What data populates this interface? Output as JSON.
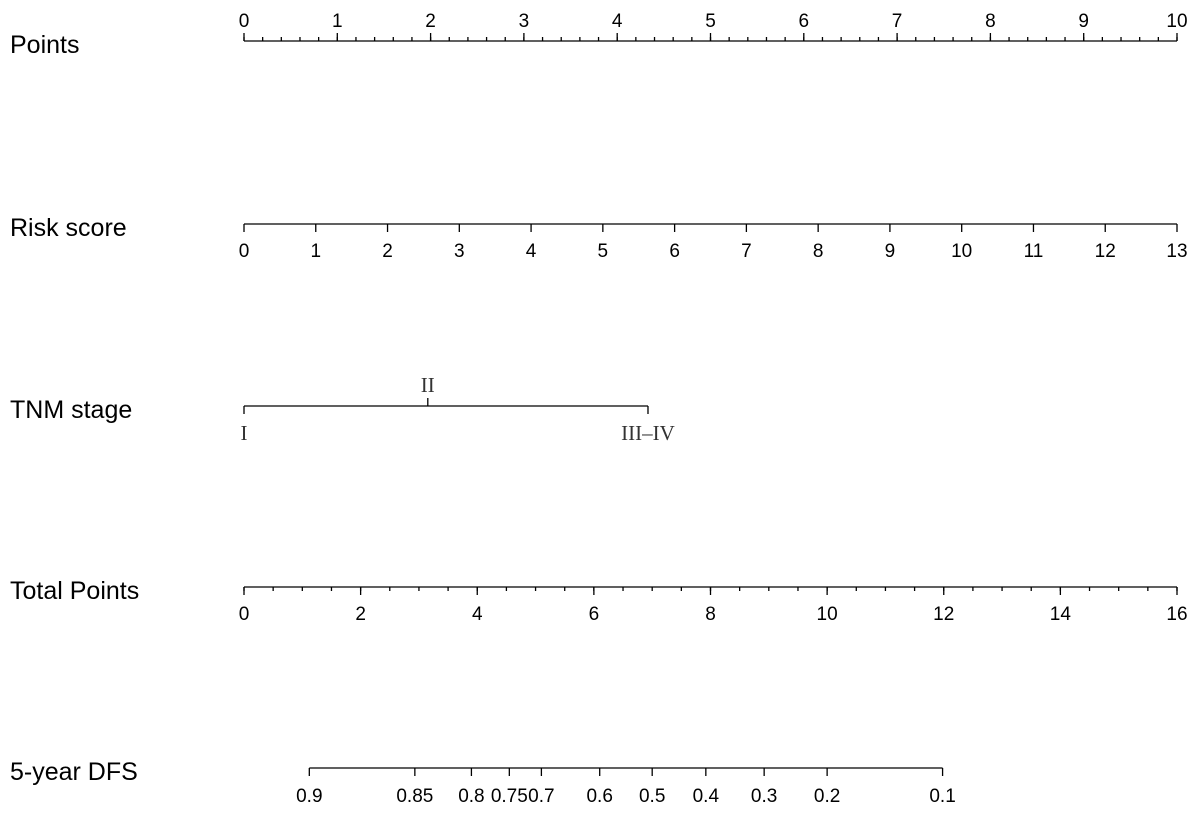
{
  "chart_data": {
    "type": "nomogram",
    "rows": [
      {
        "key": "points",
        "label": "Points",
        "range": [
          0,
          10
        ],
        "tick_side": "above",
        "major_ticks": [
          "0",
          "1",
          "2",
          "3",
          "4",
          "5",
          "6",
          "7",
          "8",
          "9",
          "10"
        ],
        "minor_step": 0.2
      },
      {
        "key": "risk_score",
        "label": "Risk  score",
        "range": [
          0,
          13
        ],
        "points_range": [
          0,
          10
        ],
        "tick_side": "below",
        "major_ticks": [
          "0",
          "1",
          "2",
          "3",
          "4",
          "5",
          "6",
          "7",
          "8",
          "9",
          "10",
          "11",
          "12",
          "13"
        ]
      },
      {
        "key": "tnm_stage",
        "label": "TNM  stage",
        "categorical": true,
        "categories": [
          {
            "label": "I",
            "points": 0,
            "side": "below"
          },
          {
            "label": "II",
            "points": 1.97,
            "side": "above"
          },
          {
            "label": "III–IV",
            "points": 4.33,
            "side": "below"
          }
        ]
      },
      {
        "key": "total_points",
        "label": "Total Points",
        "range": [
          0,
          16
        ],
        "tick_side": "below",
        "major_ticks": [
          "0",
          "2",
          "4",
          "6",
          "8",
          "10",
          "12",
          "14",
          "16"
        ],
        "minor_step": 0.5
      },
      {
        "key": "dfs_5yr",
        "label": "5-year DFS",
        "tick_side": "below",
        "probabilities": [
          {
            "label": "0.9",
            "total_points": 1.12
          },
          {
            "label": "0.85",
            "total_points": 2.93
          },
          {
            "label": "0.8",
            "total_points": 3.9
          },
          {
            "label": "0.75",
            "total_points": 4.55
          },
          {
            "label": "0.7",
            "total_points": 5.1
          },
          {
            "label": "0.6",
            "total_points": 6.1
          },
          {
            "label": "0.5",
            "total_points": 7.0
          },
          {
            "label": "0.4",
            "total_points": 7.92
          },
          {
            "label": "0.3",
            "total_points": 8.92
          },
          {
            "label": "0.2",
            "total_points": 10.0
          },
          {
            "label": "0.1",
            "total_points": 11.98
          }
        ]
      }
    ]
  }
}
